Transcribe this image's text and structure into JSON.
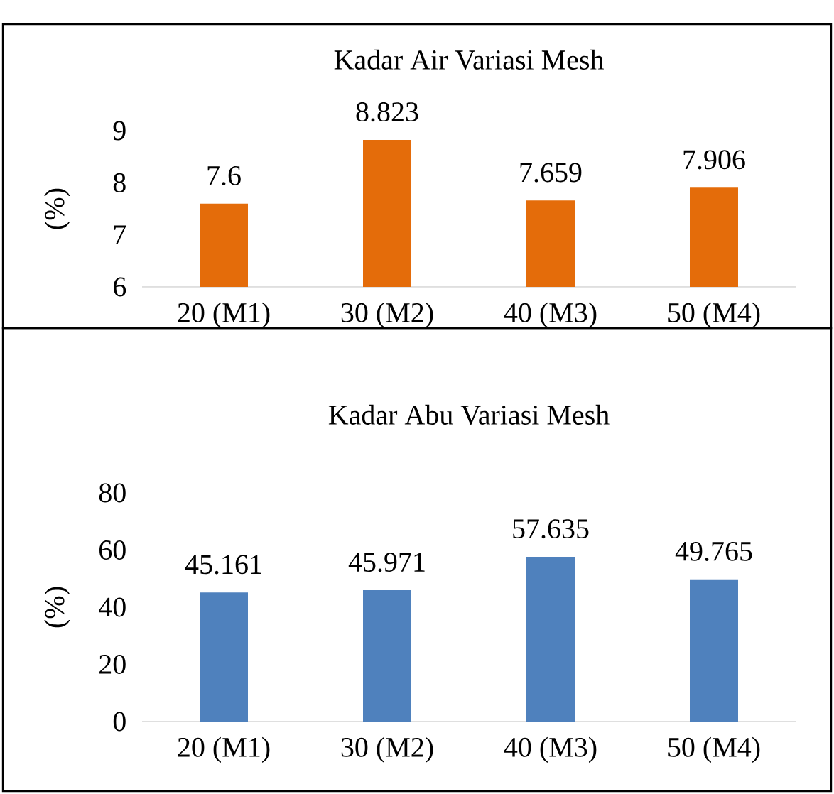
{
  "chart_data": [
    {
      "type": "bar",
      "title": "Kadar Air Variasi Mesh",
      "ylabel": "(%)",
      "categories": [
        "20 (M1)",
        "30 (M2)",
        "40 (M3)",
        "50 (M4)"
      ],
      "values": [
        7.6,
        8.823,
        7.659,
        7.906
      ],
      "color": "#e46c0a",
      "ylim": [
        6,
        9
      ],
      "yticks": [
        6,
        7,
        8,
        9
      ],
      "data_labels": true
    },
    {
      "type": "bar",
      "title": "Kadar Abu Variasi Mesh",
      "ylabel": "(%)",
      "categories": [
        "20 (M1)",
        "30 (M2)",
        "40 (M3)",
        "50 (M4)"
      ],
      "values": [
        45.161,
        45.971,
        57.635,
        49.765
      ],
      "color": "#4f81bd",
      "ylim": [
        0,
        80
      ],
      "yticks": [
        0,
        20,
        40,
        60,
        80
      ],
      "data_labels": true
    }
  ]
}
